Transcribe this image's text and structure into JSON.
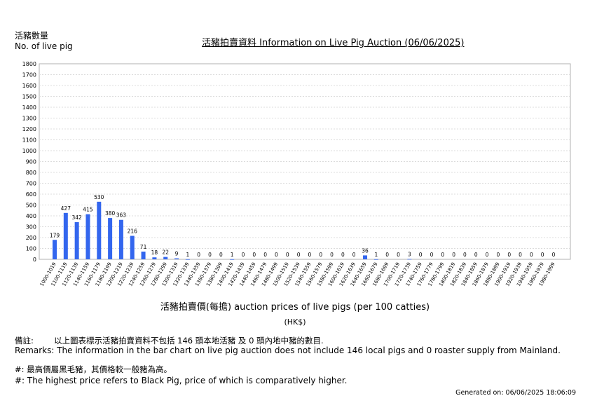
{
  "header": {
    "ylabel_zh": "活豬數量",
    "ylabel_en": "No. of live pig",
    "title": "活豬拍賣資料 Information on Live Pig Auction (06/06/2025)"
  },
  "chart_data": {
    "type": "bar",
    "title": "活豬拍賣資料 Information on Live Pig Auction (06/06/2025)",
    "ylabel": "活豬數量 No. of live pig",
    "xlabel": "活豬拍賣價(每擔) auction prices of live pigs (per 100 catties)",
    "xunit": "(HK$)",
    "ylim": [
      0,
      1800
    ],
    "yticks": [
      0,
      100,
      200,
      300,
      400,
      500,
      600,
      700,
      800,
      900,
      1000,
      1100,
      1200,
      1300,
      1400,
      1500,
      1600,
      1700,
      1800
    ],
    "grid": true,
    "bar_color": "#3366ee",
    "categories": [
      "1000-1019",
      "1100-1119",
      "1120-1139",
      "1140-1159",
      "1160-1179",
      "1180-1199",
      "1200-1219",
      "1220-1239",
      "1240-1259",
      "1260-1279",
      "1280-1299",
      "1300-1319",
      "1320-1339",
      "1340-1359",
      "1360-1379",
      "1380-1399",
      "1400-1419",
      "1420-1439",
      "1440-1459",
      "1460-1479",
      "1480-1499",
      "1500-1519",
      "1520-1539",
      "1540-1559",
      "1560-1579",
      "1580-1599",
      "1600-1619",
      "1620-1639",
      "1640-1659",
      "1660-1679",
      "1680-1699",
      "1700-1719",
      "1720-1739",
      "1740-1759",
      "1760-1779",
      "1780-1799",
      "1800-1819",
      "1820-1839",
      "1840-1859",
      "1860-1879",
      "1880-1899",
      "1900-1919",
      "1920-1939",
      "1940-1959",
      "1960-1979",
      "1980-1999"
    ],
    "values": [
      179,
      427,
      342,
      415,
      530,
      380,
      363,
      216,
      71,
      18,
      22,
      9,
      1,
      0,
      0,
      0,
      1,
      0,
      0,
      0,
      0,
      0,
      0,
      0,
      0,
      0,
      0,
      0,
      36,
      1,
      0,
      0,
      3,
      0,
      0,
      0,
      0,
      0,
      0,
      0,
      0,
      0,
      0,
      0,
      0,
      0
    ]
  },
  "footer": {
    "remarks_zh_label": "備註:",
    "remarks_zh": "以上圖表標示活豬拍賣資料不包括 146 頭本地活豬 及 0 頭內地中豬的數目.",
    "remarks_en": "Remarks: The information in the bar chart on live pig auction does not include 146 local pigs and 0 roaster supply from Mainland.",
    "note_zh": "#: 最高價屬黑毛豬，其價格較一般豬為高。",
    "note_en": "#: The highest price refers to Black Pig, price of which is comparatively higher.",
    "generated": "Generated on: 06/06/2025 18:06:09"
  }
}
